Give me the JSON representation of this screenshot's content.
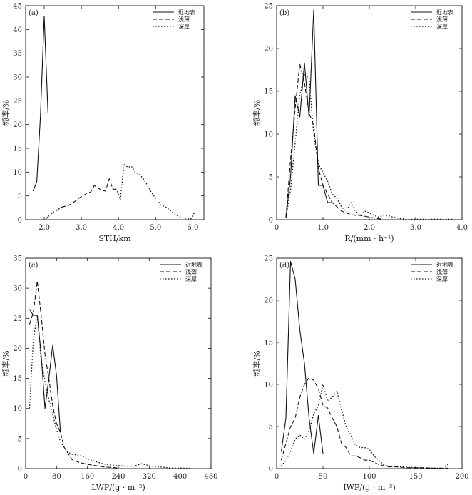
{
  "chart_data": [
    {
      "type": "line",
      "panel": "(a)",
      "xlabel": "STH/km",
      "ylabel": "频率/%",
      "xlim": [
        1.5,
        6.3
      ],
      "ylim": [
        0,
        45
      ],
      "xticks": [
        2.0,
        3.0,
        4.0,
        5.0,
        6.0
      ],
      "xtick_labels": [
        "2.0",
        "3.0",
        "4.0",
        "5.0",
        "6.0"
      ],
      "yticks": [
        0,
        5,
        10,
        15,
        20,
        25,
        30,
        35,
        40,
        45
      ],
      "legend_position": "top-right",
      "grid": false,
      "series": [
        {
          "name": "近地表",
          "style": "solid",
          "x": [
            1.7,
            1.8,
            1.9,
            2.0,
            2.1
          ],
          "y": [
            6.0,
            8.0,
            22.0,
            42.8,
            22.5
          ]
        },
        {
          "name": "浅薄",
          "style": "dashed",
          "x": [
            2.05,
            2.15,
            2.25,
            2.35,
            2.45,
            2.55,
            2.65,
            2.75,
            2.85,
            2.95,
            3.05,
            3.15,
            3.25,
            3.35,
            3.45,
            3.55,
            3.65,
            3.75,
            3.85,
            3.95,
            4.05
          ],
          "y": [
            0.2,
            1.0,
            1.6,
            2.0,
            2.6,
            2.8,
            3.0,
            3.4,
            4.0,
            4.6,
            5.0,
            5.6,
            5.8,
            7.2,
            6.6,
            6.2,
            6.0,
            8.6,
            6.4,
            6.4,
            4.2
          ]
        },
        {
          "name": "深厚",
          "style": "dotted",
          "x": [
            4.05,
            4.15,
            4.25,
            4.35,
            4.45,
            4.55,
            4.65,
            4.75,
            4.85,
            4.95,
            5.05,
            5.15,
            5.25,
            5.35,
            5.45,
            5.55,
            5.65,
            5.75,
            5.85,
            5.95,
            6.05
          ],
          "y": [
            4.2,
            11.8,
            11.0,
            11.2,
            10.0,
            9.6,
            8.8,
            7.6,
            6.2,
            5.0,
            4.2,
            3.0,
            2.8,
            2.2,
            1.6,
            1.0,
            0.6,
            0.4,
            0.2,
            0.2,
            1.6
          ]
        }
      ]
    },
    {
      "type": "line",
      "panel": "(b)",
      "xlabel": "R/(mm · h⁻¹)",
      "ylabel": "频率/%",
      "xlim": [
        0,
        4.0
      ],
      "ylim": [
        0,
        25
      ],
      "xticks": [
        0,
        1.0,
        2.0,
        3.0,
        4.0
      ],
      "xtick_labels": [
        "0",
        "1.0",
        "2.0",
        "3.0",
        "4.0"
      ],
      "yticks": [
        0,
        5,
        10,
        15,
        20,
        25
      ],
      "legend_position": "top-right",
      "grid": false,
      "series": [
        {
          "name": "近地表",
          "style": "solid",
          "x": [
            0.2,
            0.3,
            0.4,
            0.5,
            0.6,
            0.7,
            0.8,
            0.9,
            1.0,
            1.1,
            1.2
          ],
          "y": [
            0.2,
            5.0,
            14.5,
            12.0,
            18.3,
            12.0,
            24.5,
            4.0,
            4.0,
            2.0,
            2.0
          ]
        },
        {
          "name": "浅薄",
          "style": "dashed",
          "x": [
            0.2,
            0.3,
            0.4,
            0.5,
            0.6,
            0.7,
            0.8,
            0.9,
            1.0,
            1.1,
            1.2,
            1.3,
            1.4,
            1.5,
            1.6,
            1.7,
            1.8,
            1.9,
            2.0,
            2.1,
            2.2,
            2.3
          ],
          "y": [
            0.3,
            7.0,
            13.0,
            18.2,
            16.0,
            12.5,
            11.0,
            6.0,
            4.0,
            3.0,
            2.0,
            1.5,
            1.0,
            0.8,
            0.6,
            0.5,
            0.5,
            0.4,
            0.3,
            0.2,
            0.1,
            0.1
          ]
        },
        {
          "name": "深厚",
          "style": "dotted",
          "x": [
            0.2,
            0.3,
            0.4,
            0.5,
            0.6,
            0.7,
            0.8,
            0.9,
            1.0,
            1.1,
            1.2,
            1.3,
            1.4,
            1.5,
            1.6,
            1.7,
            1.8,
            1.9,
            2.0,
            2.1,
            2.2,
            2.3,
            2.4,
            2.5,
            2.6,
            2.7,
            2.8,
            2.9,
            3.0,
            3.5,
            3.8
          ],
          "y": [
            0.2,
            3.5,
            9.0,
            14.5,
            17.0,
            16.5,
            10.0,
            6.5,
            5.5,
            4.5,
            3.0,
            2.5,
            1.5,
            1.0,
            2.0,
            1.0,
            0.5,
            1.0,
            0.8,
            0.5,
            0.3,
            0.5,
            0.5,
            0.3,
            0.2,
            0.1,
            0.05,
            0.05,
            0.05,
            0.05,
            0.05
          ]
        }
      ]
    },
    {
      "type": "line",
      "panel": "(c)",
      "xlabel": "LWP/(g · m⁻²)",
      "ylabel": "频率/%",
      "xlim": [
        0,
        480
      ],
      "ylim": [
        0,
        35
      ],
      "xticks": [
        0,
        80,
        160,
        240,
        320,
        400,
        480
      ],
      "xtick_labels": [
        "0",
        "80",
        "160",
        "240",
        "320",
        "400",
        "480"
      ],
      "yticks": [
        0,
        5,
        10,
        15,
        20,
        25,
        30,
        35
      ],
      "legend_position": "top-right",
      "grid": false,
      "series": [
        {
          "name": "近地表",
          "style": "solid",
          "x": [
            10,
            20,
            30,
            40,
            50,
            60,
            70,
            80,
            90
          ],
          "y": [
            26.5,
            25.5,
            25.5,
            19.0,
            10.0,
            15.0,
            20.5,
            15.5,
            6.0
          ]
        },
        {
          "name": "浅薄",
          "style": "dashed",
          "x": [
            10,
            20,
            30,
            40,
            50,
            60,
            70,
            80,
            90,
            100,
            120,
            140,
            160,
            180,
            200,
            220,
            240
          ],
          "y": [
            24.0,
            26.0,
            31.2,
            25.5,
            19.0,
            15.0,
            10.5,
            7.5,
            6.0,
            3.5,
            1.5,
            1.0,
            0.7,
            0.5,
            0.3,
            0.2,
            0.1
          ]
        },
        {
          "name": "深厚",
          "style": "dotted",
          "x": [
            10,
            20,
            30,
            40,
            50,
            60,
            70,
            80,
            90,
            100,
            110,
            120,
            130,
            140,
            150,
            160,
            180,
            200,
            220,
            240,
            260,
            280,
            300,
            320,
            340,
            360,
            380,
            400,
            420,
            430
          ],
          "y": [
            10.0,
            21.5,
            25.5,
            18.0,
            14.5,
            11.5,
            9.0,
            6.5,
            4.5,
            3.5,
            2.7,
            2.4,
            2.3,
            2.2,
            2.0,
            1.6,
            1.2,
            0.8,
            0.6,
            0.5,
            0.4,
            0.4,
            0.8,
            0.5,
            0.3,
            0.2,
            0.1,
            0.1,
            0.05,
            0.1
          ]
        }
      ]
    },
    {
      "type": "line",
      "panel": "(d)",
      "xlabel": "IWP/(g · m⁻²)",
      "ylabel": "频率/%",
      "xlim": [
        0,
        200
      ],
      "ylim": [
        0,
        25
      ],
      "xticks": [
        0,
        50,
        100,
        150,
        200
      ],
      "xtick_labels": [
        "0",
        "50",
        "100",
        "150",
        "200"
      ],
      "yticks": [
        0,
        5,
        10,
        15,
        20,
        25
      ],
      "legend_position": "top-right",
      "grid": false,
      "series": [
        {
          "name": "近地表",
          "style": "solid",
          "x": [
            5,
            10,
            15,
            20,
            25,
            30,
            35,
            40,
            45,
            50
          ],
          "y": [
            2.0,
            6.0,
            24.6,
            22.5,
            16.5,
            12.5,
            6.0,
            1.8,
            6.3,
            1.8
          ]
        },
        {
          "name": "浅薄",
          "style": "dashed",
          "x": [
            5,
            10,
            15,
            20,
            25,
            30,
            35,
            40,
            45,
            50,
            55,
            60,
            65,
            70,
            75,
            80,
            85,
            90,
            95,
            100,
            110,
            120,
            130,
            140,
            150,
            160,
            170,
            180,
            185
          ],
          "y": [
            1.0,
            3.0,
            5.0,
            6.0,
            8.5,
            10.0,
            10.8,
            10.5,
            9.5,
            7.5,
            7.2,
            6.0,
            5.0,
            3.0,
            2.5,
            1.5,
            1.5,
            1.3,
            1.0,
            1.0,
            0.5,
            0.2,
            0.2,
            0.1,
            0.1,
            0.1,
            0.05,
            0.05,
            0.05
          ]
        },
        {
          "name": "深厚",
          "style": "dotted",
          "x": [
            5,
            10,
            15,
            20,
            25,
            30,
            35,
            40,
            45,
            50,
            55,
            60,
            65,
            70,
            75,
            80,
            85,
            90,
            95,
            100,
            105,
            110,
            115,
            120,
            130,
            140,
            150,
            160,
            170,
            180,
            185
          ],
          "y": [
            0.3,
            1.0,
            2.0,
            3.5,
            4.0,
            3.5,
            4.5,
            6.5,
            7.5,
            10.0,
            8.0,
            8.5,
            9.2,
            7.0,
            5.0,
            4.0,
            2.8,
            2.5,
            2.5,
            2.3,
            1.5,
            1.0,
            0.5,
            0.3,
            0.2,
            0.2,
            0.1,
            0.1,
            0.05,
            0.05,
            0.5
          ]
        }
      ]
    }
  ]
}
